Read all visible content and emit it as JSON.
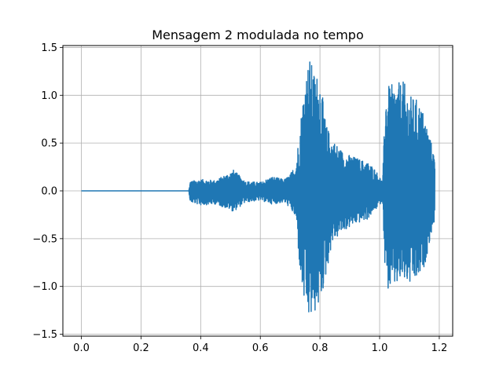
{
  "chart_data": {
    "type": "line",
    "title": "Mensagem 2 modulada no tempo",
    "xlabel": "",
    "ylabel": "",
    "xlim": [
      -0.062,
      1.245
    ],
    "ylim": [
      -1.52,
      1.52
    ],
    "xticks": [
      0.0,
      0.2,
      0.4,
      0.6,
      0.8,
      1.0,
      1.2
    ],
    "xtick_labels": [
      "0.0",
      "0.2",
      "0.4",
      "0.6",
      "0.8",
      "1.0",
      "1.2"
    ],
    "yticks": [
      -1.5,
      -1.0,
      -0.5,
      0.0,
      0.5,
      1.0,
      1.5
    ],
    "ytick_labels": [
      "−1.5",
      "−1.0",
      "−0.5",
      "0.0",
      "0.5",
      "1.0",
      "1.5"
    ],
    "grid": true,
    "series": [
      {
        "name": "",
        "color": "#1f77b4",
        "sample_rate": 2000,
        "x_start": 0.0,
        "x_end": 1.185,
        "envelope": {
          "x": [
            0.0,
            0.36,
            0.365,
            0.4,
            0.45,
            0.5,
            0.51,
            0.55,
            0.6,
            0.64,
            0.68,
            0.7,
            0.72,
            0.735,
            0.75,
            0.765,
            0.78,
            0.8,
            0.82,
            0.84,
            0.88,
            0.92,
            0.96,
            0.98,
            1.0,
            1.01,
            1.02,
            1.03,
            1.05,
            1.08,
            1.1,
            1.13,
            1.15,
            1.17,
            1.185
          ],
          "upper": [
            0.0,
            0.0,
            0.1,
            0.12,
            0.11,
            0.2,
            0.22,
            0.1,
            0.09,
            0.15,
            0.12,
            0.17,
            0.3,
            0.75,
            1.2,
            1.4,
            1.25,
            1.2,
            0.7,
            0.55,
            0.4,
            0.35,
            0.3,
            0.25,
            0.15,
            0.1,
            1.05,
            1.1,
            1.12,
            1.15,
            1.0,
            0.95,
            0.8,
            0.55,
            0.35
          ],
          "lower": [
            0.0,
            0.0,
            -0.12,
            -0.15,
            -0.14,
            -0.2,
            -0.22,
            -0.12,
            -0.1,
            -0.14,
            -0.12,
            -0.18,
            -0.3,
            -0.95,
            -1.25,
            -1.38,
            -1.3,
            -1.2,
            -0.9,
            -0.55,
            -0.42,
            -0.35,
            -0.3,
            -0.22,
            -0.15,
            -0.1,
            -1.0,
            -1.05,
            -1.02,
            -0.95,
            -1.0,
            -0.95,
            -0.8,
            -0.5,
            -0.3
          ]
        }
      }
    ]
  }
}
